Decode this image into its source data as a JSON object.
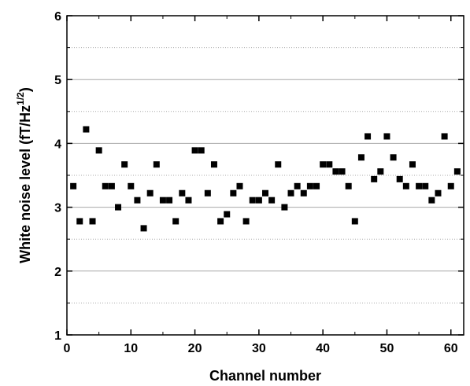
{
  "chart_data": {
    "type": "scatter",
    "title": "",
    "xlabel": "Channel number",
    "ylabel": "White noise level (fT/Hz",
    "ylabel_superscript": "1/2",
    "ylabel_suffix": ")",
    "xlim": [
      0,
      62
    ],
    "ylim": [
      1,
      6
    ],
    "x_ticks": [
      0,
      10,
      20,
      30,
      40,
      50,
      60
    ],
    "y_ticks": [
      1,
      2,
      3,
      4,
      5,
      6
    ],
    "y_gridlines": [
      2,
      3,
      4,
      5
    ],
    "y_dotted_gridlines": [
      1.5,
      2.5,
      3.5,
      4.5,
      5.5
    ],
    "marker": "square",
    "marker_color": "#000000",
    "series": [
      {
        "x": [
          1,
          2,
          3,
          4,
          5,
          6,
          7,
          8,
          9,
          10,
          11,
          12,
          13,
          14,
          15,
          16,
          17,
          18,
          19,
          20,
          21,
          22,
          23,
          24,
          25,
          26,
          27,
          28,
          29,
          30,
          31,
          32,
          33,
          34,
          35,
          36,
          37,
          38,
          39,
          40,
          41,
          42,
          43,
          44,
          45,
          46,
          47,
          48,
          49,
          50,
          51,
          52,
          53,
          54,
          55,
          56,
          57,
          58,
          59,
          60,
          61
        ],
        "y": [
          3.33,
          2.78,
          4.22,
          2.78,
          3.89,
          3.33,
          3.33,
          3.0,
          3.67,
          3.33,
          3.11,
          2.67,
          3.22,
          3.67,
          3.11,
          3.11,
          2.78,
          3.22,
          3.11,
          3.89,
          3.89,
          3.22,
          3.67,
          2.78,
          2.89,
          3.22,
          3.33,
          2.78,
          3.11,
          3.11,
          3.22,
          3.11,
          3.67,
          3.0,
          3.22,
          3.33,
          3.22,
          3.33,
          3.33,
          3.67,
          3.67,
          3.56,
          3.56,
          3.33,
          2.78,
          3.78,
          4.11,
          3.44,
          3.56,
          4.11,
          3.78,
          3.44,
          3.33,
          3.67,
          3.33,
          3.33,
          3.11,
          3.22,
          4.11,
          3.33,
          3.56
        ]
      }
    ]
  }
}
